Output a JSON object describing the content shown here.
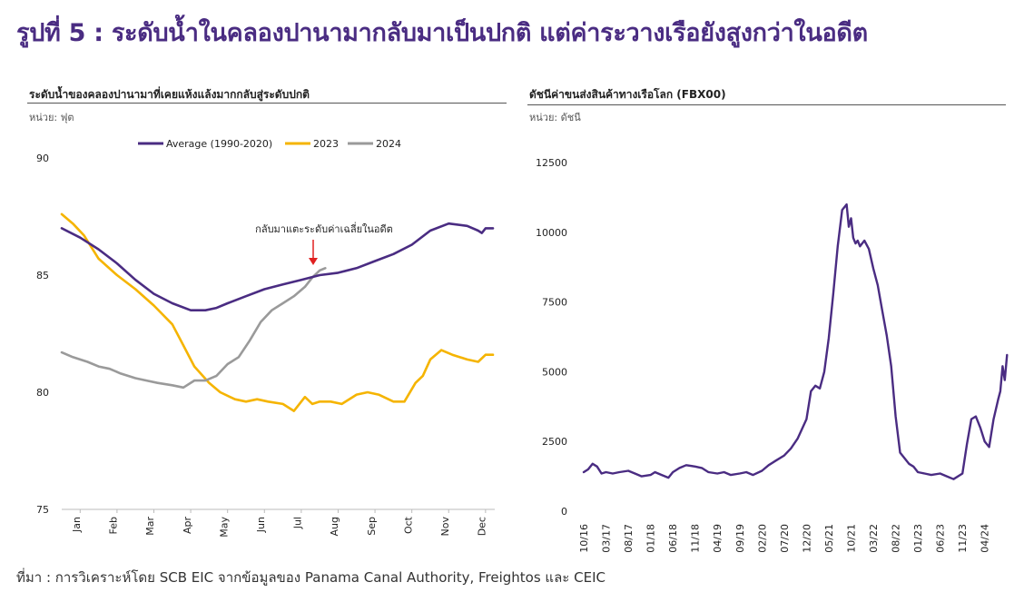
{
  "page": {
    "title": "รูปที่ 5 : ระดับน้ำในคลองปานามากลับมาเป็นปกติ แต่ค่าระวางเรือยังสูงกว่าในอดีต",
    "source": "ที่มา : การวิเคราะห์โดย SCB EIC จากข้อมูลของ Panama Canal Authority, Freightos และ CEIC"
  },
  "colors": {
    "title": "#4a2c82",
    "average": "#4a2c82",
    "y2023": "#f5b400",
    "y2024": "#9a9a9a",
    "fbx": "#4a2c82",
    "arrow": "#e02020"
  },
  "chart_data": [
    {
      "type": "line",
      "title": "ระดับน้ำของคลองปานามาที่เคยแห้งแล้งมากกลับสู่ระดับปกติ",
      "unit": "หน่วย: ฟุต",
      "xlabel": "",
      "ylabel": "",
      "categories": [
        "Jan",
        "Feb",
        "Mar",
        "Apr",
        "May",
        "Jun",
        "Jul",
        "Aug",
        "Sep",
        "Oct",
        "Nov",
        "Dec"
      ],
      "ylim": [
        75,
        90
      ],
      "yticks": [
        75,
        80,
        85,
        90
      ],
      "legend_position": "top",
      "annotation": "กลับมาแตะระดับค่าเฉลี่ยในอดีต",
      "series": [
        {
          "name": "Average (1990-2020)",
          "x": [
            0,
            0.5,
            1.0,
            1.5,
            2.0,
            2.5,
            3.0,
            3.5,
            3.9,
            4.2,
            4.5,
            5.0,
            5.5,
            6.0,
            6.5,
            7.0,
            7.5,
            8.0,
            8.5,
            9.0,
            9.5,
            10.0,
            10.5,
            11.0,
            11.3,
            11.4,
            11.5,
            11.7
          ],
          "values": [
            87.0,
            86.6,
            86.1,
            85.5,
            84.8,
            84.2,
            83.8,
            83.5,
            83.5,
            83.6,
            83.8,
            84.1,
            84.4,
            84.6,
            84.8,
            85.0,
            85.1,
            85.3,
            85.6,
            85.9,
            86.3,
            86.9,
            87.2,
            87.1,
            86.9,
            86.8,
            87.0,
            87.0
          ]
        },
        {
          "name": "2023",
          "x": [
            0,
            0.3,
            0.6,
            1.0,
            1.5,
            2.0,
            2.5,
            3.0,
            3.3,
            3.6,
            4.0,
            4.3,
            4.7,
            5.0,
            5.3,
            5.6,
            6.0,
            6.3,
            6.6,
            6.8,
            7.0,
            7.3,
            7.6,
            8.0,
            8.3,
            8.6,
            9.0,
            9.3,
            9.6,
            9.8,
            10.0,
            10.3,
            10.6,
            11.0,
            11.3,
            11.5,
            11.7
          ],
          "values": [
            87.6,
            87.2,
            86.7,
            85.7,
            85.0,
            84.4,
            83.7,
            82.9,
            82.0,
            81.1,
            80.4,
            80.0,
            79.7,
            79.6,
            79.7,
            79.6,
            79.5,
            79.2,
            79.8,
            79.5,
            79.6,
            79.6,
            79.5,
            79.9,
            80.0,
            79.9,
            79.6,
            79.6,
            80.4,
            80.7,
            81.4,
            81.8,
            81.6,
            81.4,
            81.3,
            81.6,
            81.6
          ]
        },
        {
          "name": "2024",
          "x": [
            0,
            0.3,
            0.7,
            1.0,
            1.3,
            1.6,
            2.0,
            2.3,
            2.6,
            3.0,
            3.3,
            3.6,
            3.9,
            4.2,
            4.5,
            4.8,
            5.1,
            5.4,
            5.7,
            6.0,
            6.3,
            6.6,
            6.8,
            7.0,
            7.15
          ],
          "values": [
            81.7,
            81.5,
            81.3,
            81.1,
            81.0,
            80.8,
            80.6,
            80.5,
            80.4,
            80.3,
            80.2,
            80.5,
            80.5,
            80.7,
            81.2,
            81.5,
            82.2,
            83.0,
            83.5,
            83.8,
            84.1,
            84.5,
            84.9,
            85.2,
            85.3
          ]
        }
      ]
    },
    {
      "type": "line",
      "title": "ดัชนีค่าขนส่งสินค้าทางเรือโลก (FBX00)",
      "unit": "หน่วย: ดัชนี",
      "xlabel": "",
      "ylabel": "",
      "categories": [
        "10/16",
        "03/17",
        "08/17",
        "01/18",
        "06/18",
        "11/18",
        "04/19",
        "09/19",
        "02/20",
        "07/20",
        "12/20",
        "05/21",
        "10/21",
        "03/22",
        "08/22",
        "01/23",
        "06/23",
        "11/23",
        "04/24"
      ],
      "ylim": [
        0,
        12500
      ],
      "yticks": [
        0,
        2500,
        5000,
        7500,
        10000,
        12500
      ],
      "series": [
        {
          "name": "FBX00",
          "x": [
            0,
            0.2,
            0.4,
            0.6,
            0.8,
            1.0,
            1.3,
            1.6,
            2.0,
            2.3,
            2.6,
            3.0,
            3.2,
            3.5,
            3.8,
            4.0,
            4.3,
            4.6,
            5.0,
            5.3,
            5.6,
            6.0,
            6.3,
            6.6,
            7.0,
            7.3,
            7.6,
            8.0,
            8.3,
            8.6,
            9.0,
            9.3,
            9.6,
            10.0,
            10.2,
            10.4,
            10.6,
            10.8,
            11.0,
            11.2,
            11.4,
            11.6,
            11.8,
            11.9,
            12.0,
            12.1,
            12.2,
            12.3,
            12.4,
            12.6,
            12.8,
            13.0,
            13.2,
            13.4,
            13.6,
            13.8,
            14.0,
            14.2,
            14.4,
            14.6,
            14.8,
            15.0,
            15.3,
            15.6,
            16.0,
            16.3,
            16.6,
            17.0,
            17.2,
            17.4,
            17.6,
            17.8,
            18.0,
            18.2,
            18.4,
            18.6,
            18.7,
            18.8,
            18.9,
            19.0
          ],
          "values": [
            1400,
            1500,
            1700,
            1600,
            1350,
            1400,
            1350,
            1400,
            1450,
            1350,
            1250,
            1300,
            1400,
            1300,
            1200,
            1400,
            1550,
            1650,
            1600,
            1550,
            1400,
            1350,
            1400,
            1300,
            1350,
            1400,
            1300,
            1450,
            1650,
            1800,
            2000,
            2250,
            2600,
            3300,
            4300,
            4500,
            4400,
            5000,
            6200,
            7800,
            9500,
            10800,
            11000,
            10200,
            10500,
            9800,
            9600,
            9700,
            9500,
            9700,
            9400,
            8700,
            8100,
            7200,
            6300,
            5200,
            3400,
            2100,
            1900,
            1700,
            1600,
            1400,
            1350,
            1300,
            1350,
            1250,
            1150,
            1350,
            2400,
            3300,
            3400,
            3000,
            2500,
            2300,
            3300,
            4000,
            4300,
            5200,
            4700,
            5600
          ]
        }
      ]
    }
  ]
}
